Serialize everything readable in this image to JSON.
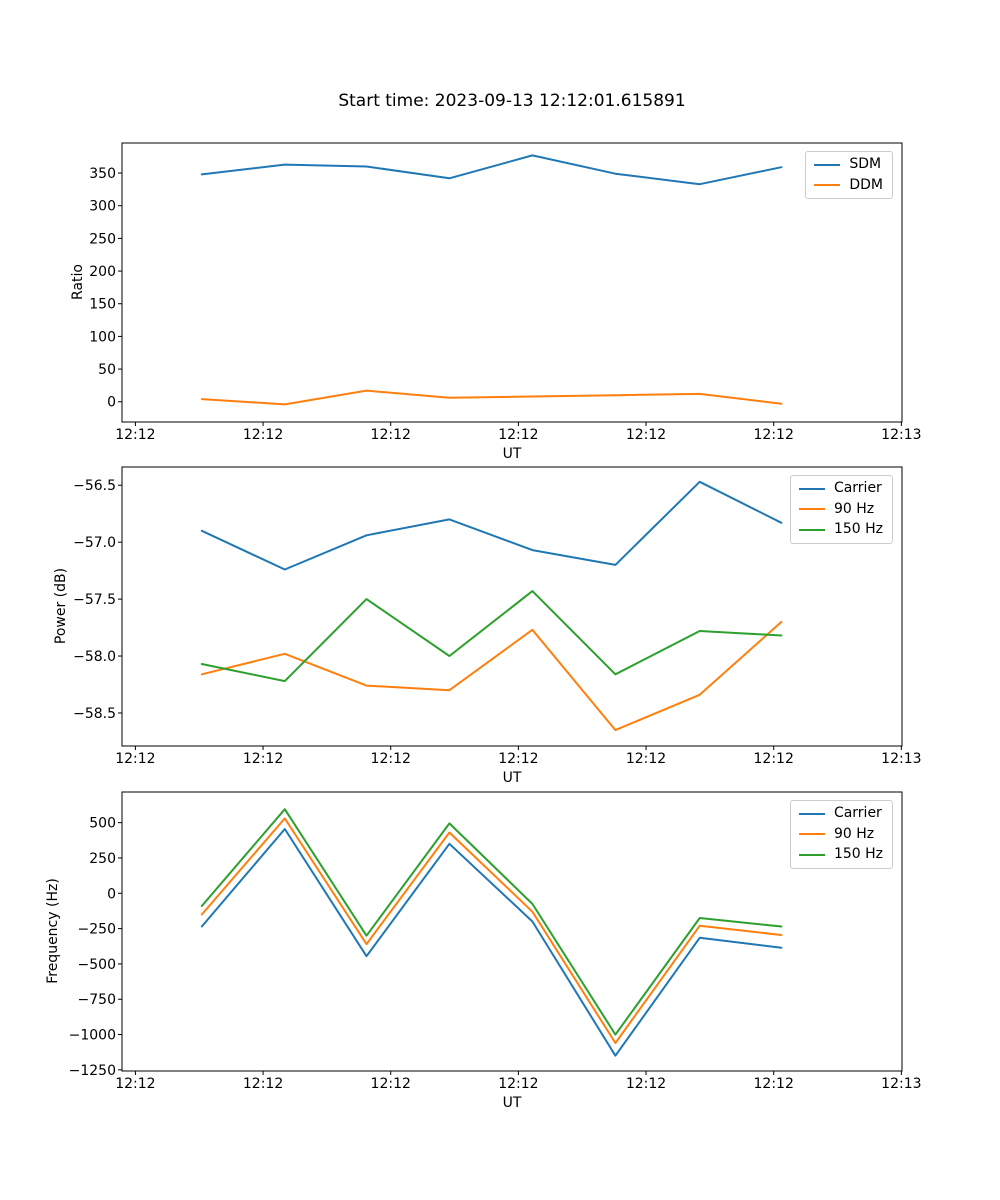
{
  "title": "Start time: 2023-09-13 12:12:01.615891",
  "x_axis": {
    "label": "UT",
    "tick_seconds": [
      0,
      10,
      20,
      30,
      40,
      50,
      60
    ],
    "tick_labels": [
      "12:12",
      "12:12",
      "12:12",
      "12:12",
      "12:12",
      "12:12",
      "12:13"
    ],
    "xlim_seconds": [
      -1.05,
      60.05
    ]
  },
  "x_seconds": [
    5.2,
    11.7,
    18.1,
    24.6,
    31.1,
    37.6,
    44.2,
    50.6
  ],
  "chart_data": [
    {
      "id": "ratio",
      "type": "line",
      "title": "Start time: 2023-09-13 12:12:01.615891",
      "xlabel": "UT",
      "ylabel": "Ratio",
      "ylim": [
        -31,
        396
      ],
      "ytick_values": [
        0,
        50,
        100,
        150,
        200,
        250,
        300,
        350
      ],
      "ytick_labels": [
        "0",
        "50",
        "100",
        "150",
        "200",
        "250",
        "300",
        "350"
      ],
      "grid": false,
      "legend_position": "upper right",
      "series": [
        {
          "name": "SDM",
          "color": "#1f77b4",
          "values": [
            348,
            363,
            360,
            342,
            377,
            349,
            333,
            359
          ]
        },
        {
          "name": "DDM",
          "color": "#ff7f0e",
          "values": [
            4,
            -4,
            17,
            6,
            8,
            10,
            12,
            -3
          ]
        }
      ]
    },
    {
      "id": "power",
      "type": "line",
      "title": "",
      "xlabel": "UT",
      "ylabel": "Power (dB)",
      "ylim": [
        -58.79,
        -56.34
      ],
      "ytick_values": [
        -56.5,
        -57.0,
        -57.5,
        -58.0,
        -58.5
      ],
      "ytick_labels": [
        "−56.5",
        "−57.0",
        "−57.5",
        "−58.0",
        "−58.5"
      ],
      "grid": false,
      "legend_position": "upper right",
      "series": [
        {
          "name": "Carrier",
          "color": "#1f77b4",
          "values": [
            -56.9,
            -57.24,
            -56.94,
            -56.8,
            -57.07,
            -57.2,
            -56.47,
            -56.83
          ]
        },
        {
          "name": "90 Hz",
          "color": "#ff7f0e",
          "values": [
            -58.16,
            -57.98,
            -58.26,
            -58.3,
            -57.77,
            -58.65,
            -58.34,
            -57.7
          ]
        },
        {
          "name": "150 Hz",
          "color": "#2ca02c",
          "values": [
            -58.07,
            -58.22,
            -57.5,
            -58.0,
            -57.43,
            -58.16,
            -57.78,
            -57.82
          ]
        }
      ]
    },
    {
      "id": "frequency",
      "type": "line",
      "title": "",
      "xlabel": "UT",
      "ylabel": "Frequency (Hz)",
      "ylim": [
        -1258,
        717
      ],
      "ytick_values": [
        500,
        250,
        0,
        -250,
        -500,
        -750,
        -1000,
        -1250
      ],
      "ytick_labels": [
        "500",
        "250",
        "0",
        "−250",
        "−500",
        "−750",
        "−1000",
        "−1250"
      ],
      "grid": false,
      "legend_position": "upper right",
      "series": [
        {
          "name": "Carrier",
          "color": "#1f77b4",
          "values": [
            -235,
            455,
            -445,
            350,
            -200,
            -1150,
            -315,
            -385
          ]
        },
        {
          "name": "90 Hz",
          "color": "#ff7f0e",
          "values": [
            -150,
            530,
            -360,
            430,
            -130,
            -1060,
            -230,
            -295
          ]
        },
        {
          "name": "150 Hz",
          "color": "#2ca02c",
          "values": [
            -90,
            595,
            -300,
            495,
            -75,
            -1000,
            -175,
            -235
          ]
        }
      ]
    }
  ]
}
